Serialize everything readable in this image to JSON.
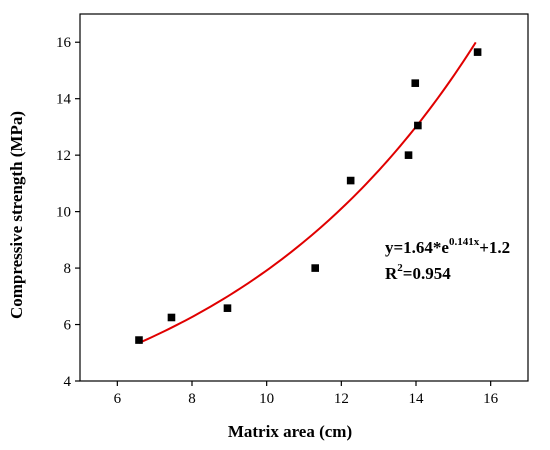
{
  "chart_data": {
    "type": "scatter",
    "xlabel": "Matrix area  (cm)",
    "ylabel": "Compressive strength  (MPa)",
    "xlim": [
      5,
      17
    ],
    "ylim": [
      4,
      17
    ],
    "x_ticks": [
      6,
      8,
      10,
      12,
      14,
      16
    ],
    "y_ticks": [
      4,
      6,
      8,
      10,
      12,
      14,
      16
    ],
    "grid": false,
    "series": [
      {
        "marker": "square",
        "color": "#000000",
        "points": [
          {
            "x": 6.58,
            "y": 5.45
          },
          {
            "x": 7.45,
            "y": 6.25
          },
          {
            "x": 8.95,
            "y": 6.58
          },
          {
            "x": 11.3,
            "y": 8.0
          },
          {
            "x": 12.25,
            "y": 11.1
          },
          {
            "x": 13.8,
            "y": 12.0
          },
          {
            "x": 13.98,
            "y": 14.55
          },
          {
            "x": 14.05,
            "y": 13.05
          },
          {
            "x": 15.65,
            "y": 15.65
          }
        ]
      }
    ],
    "fit": {
      "model": "exponential",
      "a": 1.64,
      "b": 0.141,
      "c": 1.2,
      "x_range": [
        6.58,
        15.6
      ],
      "color": "#e00000"
    },
    "annotation": {
      "equation_base": "y=1.64*e",
      "equation_exponent": "0.141x",
      "equation_tail": "+1.2",
      "r2_prefix": "R",
      "r2_sup": "2",
      "r2_value": "=0.954"
    }
  }
}
